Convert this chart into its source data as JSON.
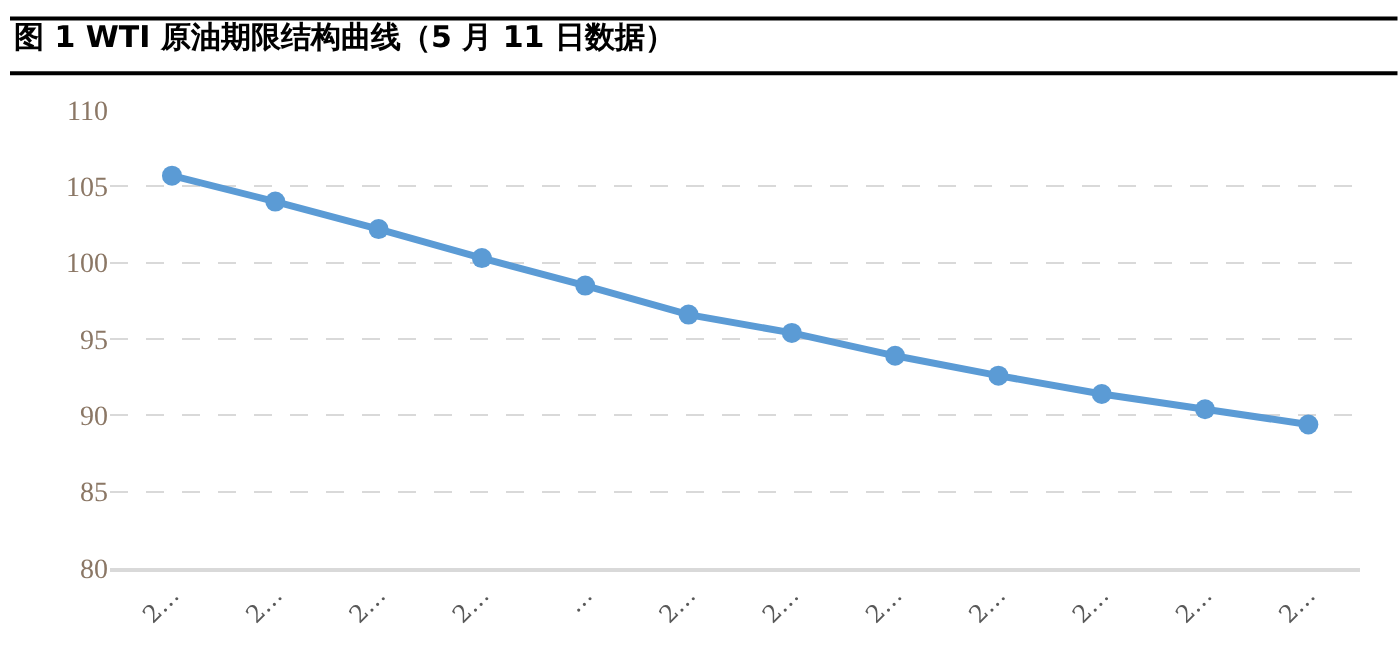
{
  "chart_data": {
    "type": "line",
    "title": "图 1 WTI 原油期限结构曲线（5 月 11 日数据）",
    "categories": [
      "2…",
      "2…",
      "2…",
      "2…",
      "…",
      "2…",
      "2…",
      "2…",
      "2…",
      "2…",
      "2…",
      "2…"
    ],
    "series": [
      {
        "color": "#5b9bd5",
        "values": [
          105.7,
          104.0,
          102.2,
          100.3,
          98.5,
          96.6,
          95.4,
          93.9,
          92.6,
          91.4,
          90.4,
          89.4
        ]
      }
    ],
    "ylim": [
      80,
      110
    ],
    "yticks": [
      80,
      85,
      90,
      95,
      100,
      105,
      110
    ],
    "grid": "y",
    "marker": "circle",
    "line_style": "solid",
    "legend": false
  }
}
